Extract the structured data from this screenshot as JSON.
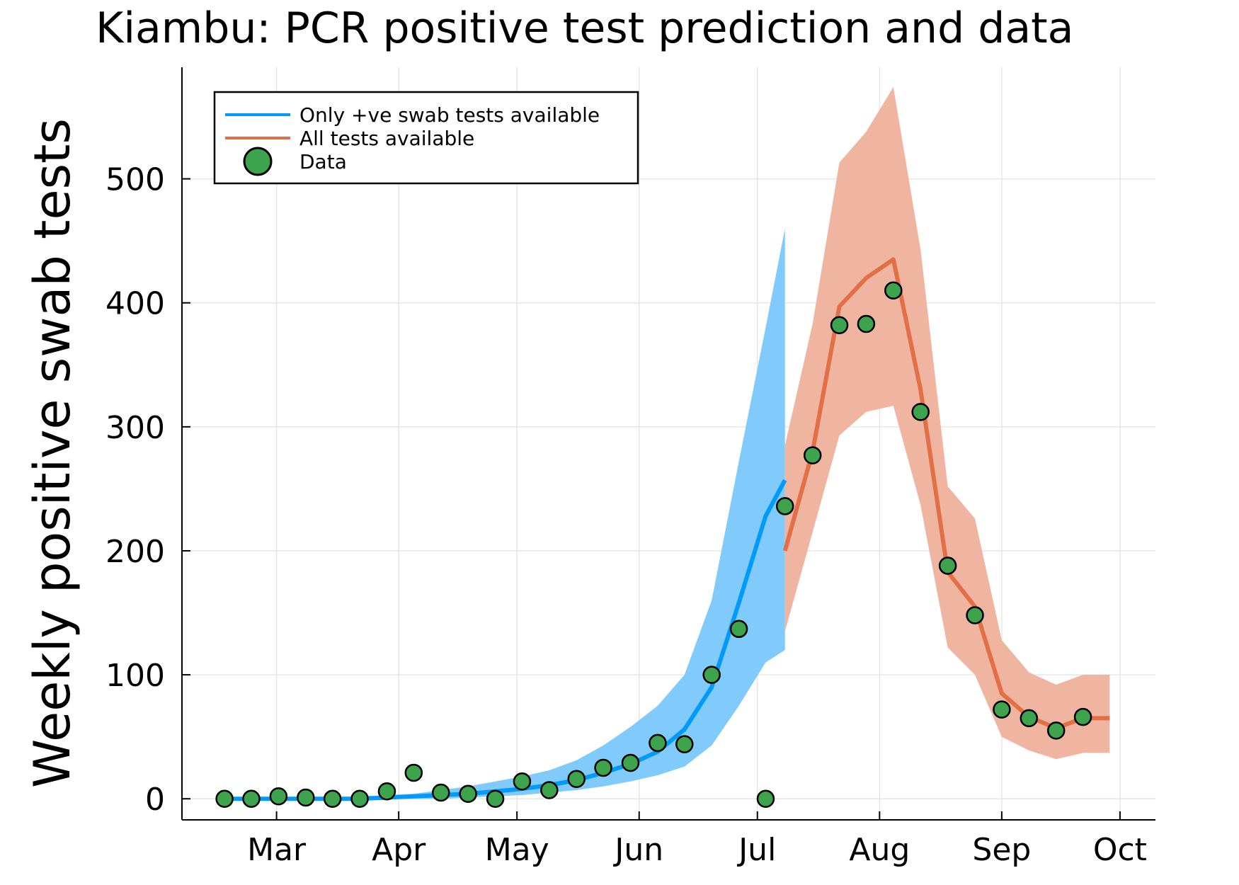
{
  "chart_data": {
    "type": "line",
    "title": "Kiambu: PCR positive test prediction and data",
    "xlabel": "",
    "ylabel": "Weekly positive swab tests",
    "x_ticks": [
      "Mar",
      "Apr",
      "May",
      "Jun",
      "Jul",
      "Aug",
      "Sep",
      "Oct"
    ],
    "x_tick_days": [
      29,
      60,
      90,
      121,
      151,
      182,
      213,
      243
    ],
    "xlim": [
      5,
      252
    ],
    "y_ticks": [
      "0",
      "100",
      "200",
      "300",
      "400",
      "500"
    ],
    "y_tick_values": [
      0,
      100,
      200,
      300,
      400,
      500
    ],
    "ylim": [
      -17,
      590
    ],
    "grid": true,
    "legend_position": "top-left",
    "legend": [
      "Only +ve swab tests available",
      "All tests available",
      "Data"
    ],
    "colors": {
      "only_pos_line": "#009af9",
      "only_pos_band": "#80cafc",
      "all_tests_line": "#e26f46",
      "all_tests_band": "#f0b5a0",
      "data_marker": "#3da44d",
      "grid": "#e6e6e6"
    },
    "series": [
      {
        "name": "Only +ve swab tests available",
        "x": [
          15.8,
          22.6,
          29.5,
          36.4,
          43.2,
          50.1,
          57.0,
          63.8,
          70.7,
          77.6,
          84.5,
          91.3,
          98.2,
          105.1,
          111.9,
          118.8,
          125.7,
          132.5,
          139.4,
          146.3,
          153.1,
          158.0
        ],
        "y": [
          0,
          0,
          0,
          0,
          0,
          0,
          1,
          2,
          3,
          4,
          6,
          8,
          11,
          15,
          21,
          28,
          38,
          56,
          90,
          158,
          228,
          257
        ],
        "lower": [
          0,
          0,
          0,
          0,
          0,
          0,
          0,
          0,
          0,
          1,
          2,
          3,
          5,
          7,
          10,
          14,
          19,
          26,
          43,
          75,
          110,
          120
        ],
        "upper": [
          1,
          1,
          1,
          1,
          1,
          2,
          3,
          4,
          7,
          10,
          14,
          18,
          23,
          31,
          43,
          58,
          75,
          100,
          160,
          272,
          380,
          460
        ]
      },
      {
        "name": "All tests available",
        "x": [
          158.0,
          165.0,
          171.8,
          178.6,
          185.5,
          192.4,
          199.3,
          206.2,
          213.0,
          219.9,
          226.8,
          233.6,
          240.4
        ],
        "y": [
          200,
          280,
          397,
          420,
          435,
          330,
          183,
          155,
          85,
          66,
          57,
          65,
          65
        ],
        "lower": [
          135,
          215,
          293,
          312,
          317,
          237,
          122,
          100,
          50,
          39,
          32,
          37,
          37
        ],
        "upper": [
          285,
          383,
          513,
          538,
          574,
          443,
          252,
          226,
          128,
          102,
          92,
          100,
          100
        ]
      }
    ],
    "data_points": {
      "name": "Data",
      "x": [
        15.8,
        22.6,
        29.5,
        36.4,
        43.2,
        50.1,
        57.0,
        63.8,
        70.7,
        77.6,
        84.5,
        91.3,
        98.2,
        105.1,
        111.9,
        118.8,
        125.7,
        132.5,
        139.4,
        146.3,
        153.1,
        158.0,
        165.0,
        171.8,
        178.6,
        185.5,
        192.4,
        199.3,
        206.2,
        213.0,
        219.9,
        226.8,
        233.6
      ],
      "y": [
        0,
        0,
        2,
        1,
        0,
        0,
        6,
        21,
        5,
        4,
        0,
        14,
        7,
        16,
        25,
        29,
        45,
        44,
        100,
        137,
        0,
        236,
        277,
        382,
        383,
        410,
        312,
        188,
        148,
        72,
        65,
        55,
        66
      ]
    }
  }
}
